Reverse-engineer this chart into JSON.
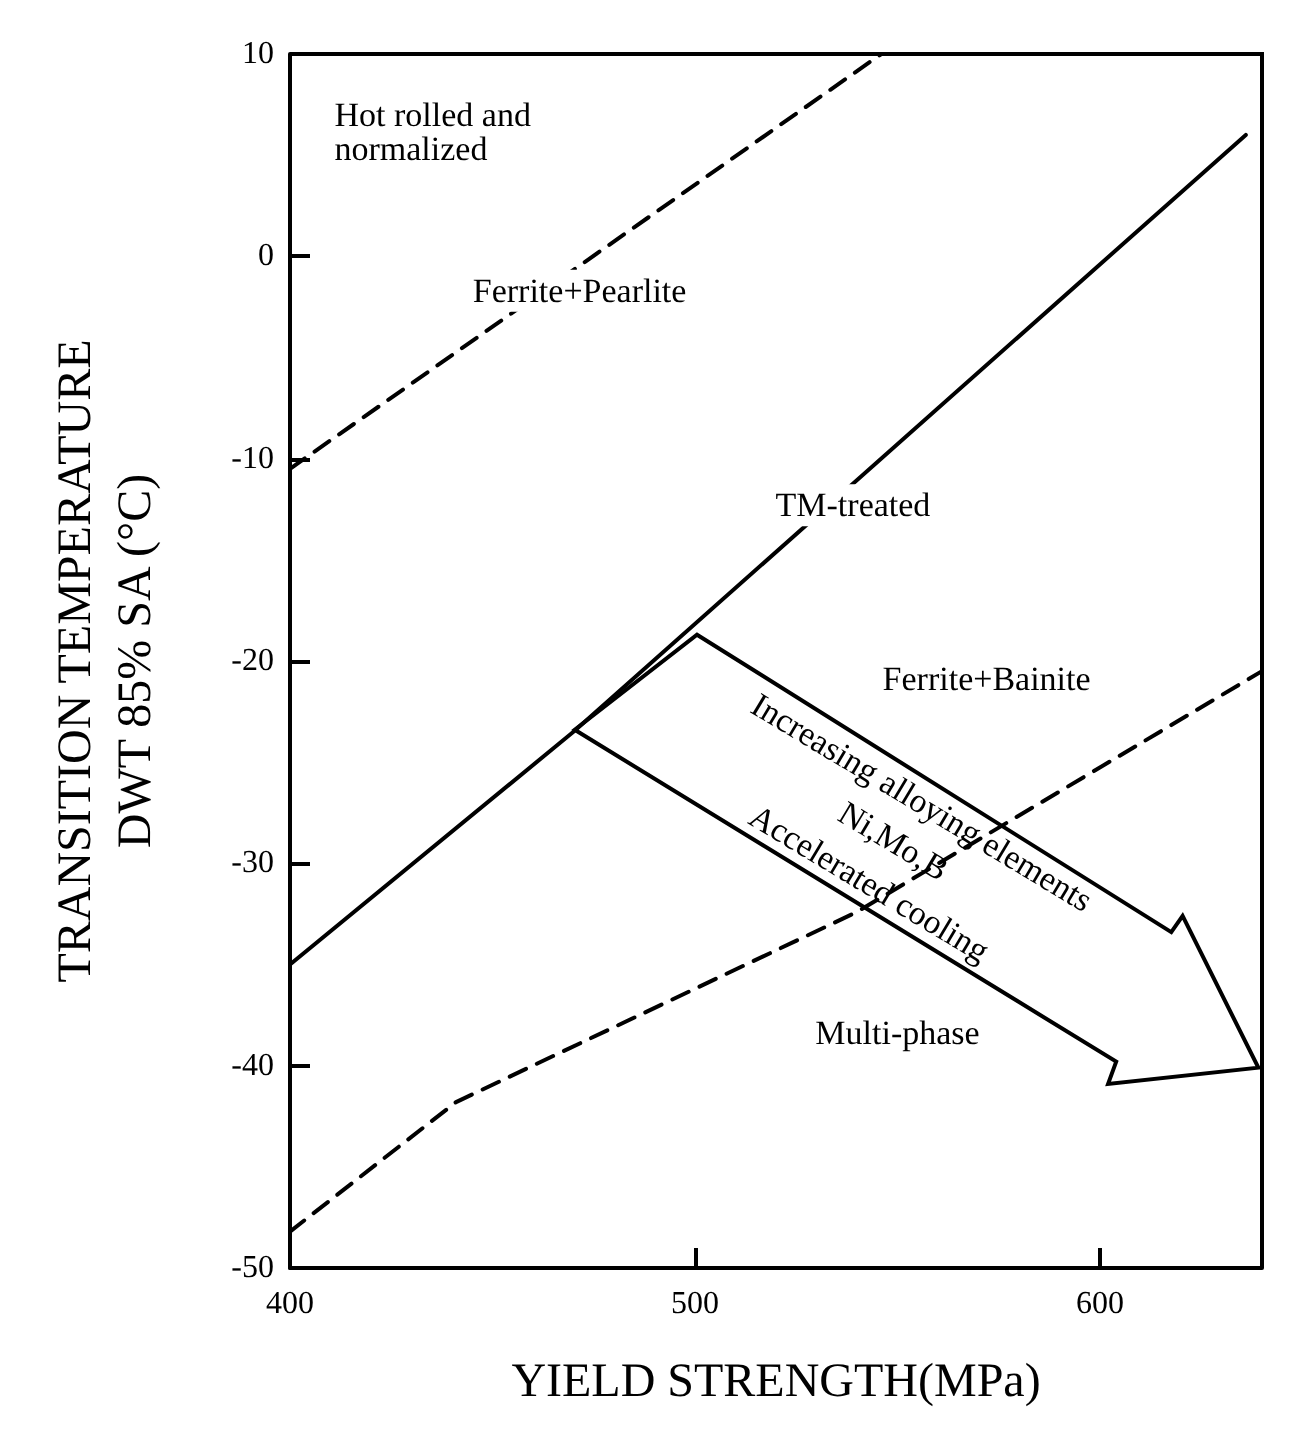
{
  "chart_data": {
    "type": "line",
    "xlabel": "YIELD STRENGTH(MPa)",
    "ylabel": "TRANSITION TEMPERATURE\nDWT 85% SA (°C)",
    "xlim": [
      400,
      640
    ],
    "xticks": [
      400,
      500,
      600
    ],
    "ylim": [
      -50,
      10
    ],
    "yticks": [
      -50,
      -40,
      -30,
      -20,
      -10,
      0,
      10
    ],
    "grid": false,
    "marker": "none",
    "series": [
      {
        "color": "#000000",
        "line_style": "dashed",
        "x": [
          400,
          546
        ],
        "values": [
          -10.5,
          10
        ]
      },
      {
        "color": "#000000",
        "line_style": "solid",
        "x": [
          400,
          470,
          636
        ],
        "values": [
          -35,
          -23.5,
          6
        ]
      },
      {
        "color": "#000000",
        "line_style": "dashed",
        "x": [
          400,
          441,
          540,
          640
        ],
        "values": [
          -48.2,
          -41.8,
          -32.4,
          -20.5
        ]
      }
    ],
    "annotations": [
      "Hot rolled and normalized",
      "Ferrite+Pearlite",
      "TM-treated",
      "Ferrite+Bainite",
      "Multi-phase",
      "Increasing alloying elements",
      "Ni,Mo,B",
      "Accelerated cooling"
    ]
  }
}
